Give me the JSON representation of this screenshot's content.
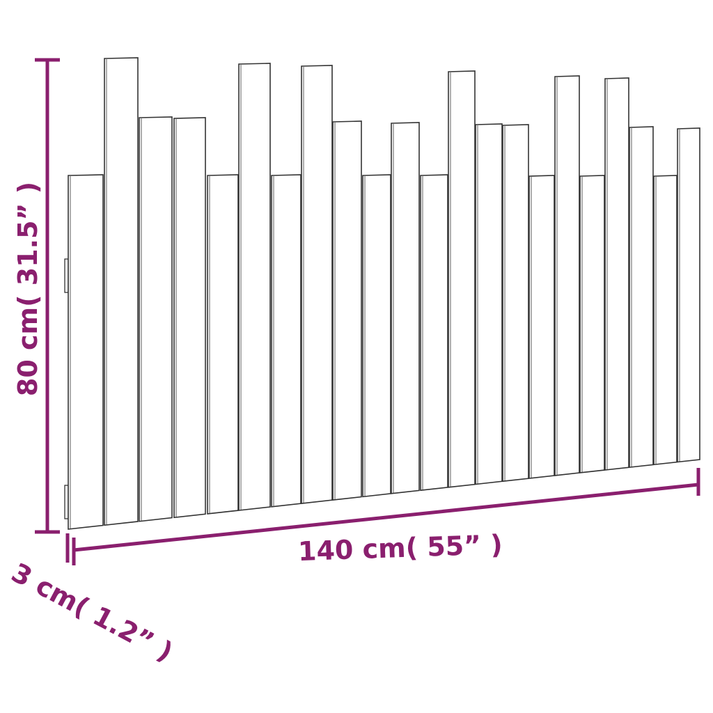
{
  "dimensions": {
    "height": "80 cm( 31.5” )",
    "width": "140 cm( 55” )",
    "depth": "3 cm( 1.2” )"
  },
  "colors": {
    "dimension": "#8a1f6e",
    "outline": "#333333",
    "slat_fill": "#ffffff"
  },
  "product": {
    "slat_count": 22
  }
}
